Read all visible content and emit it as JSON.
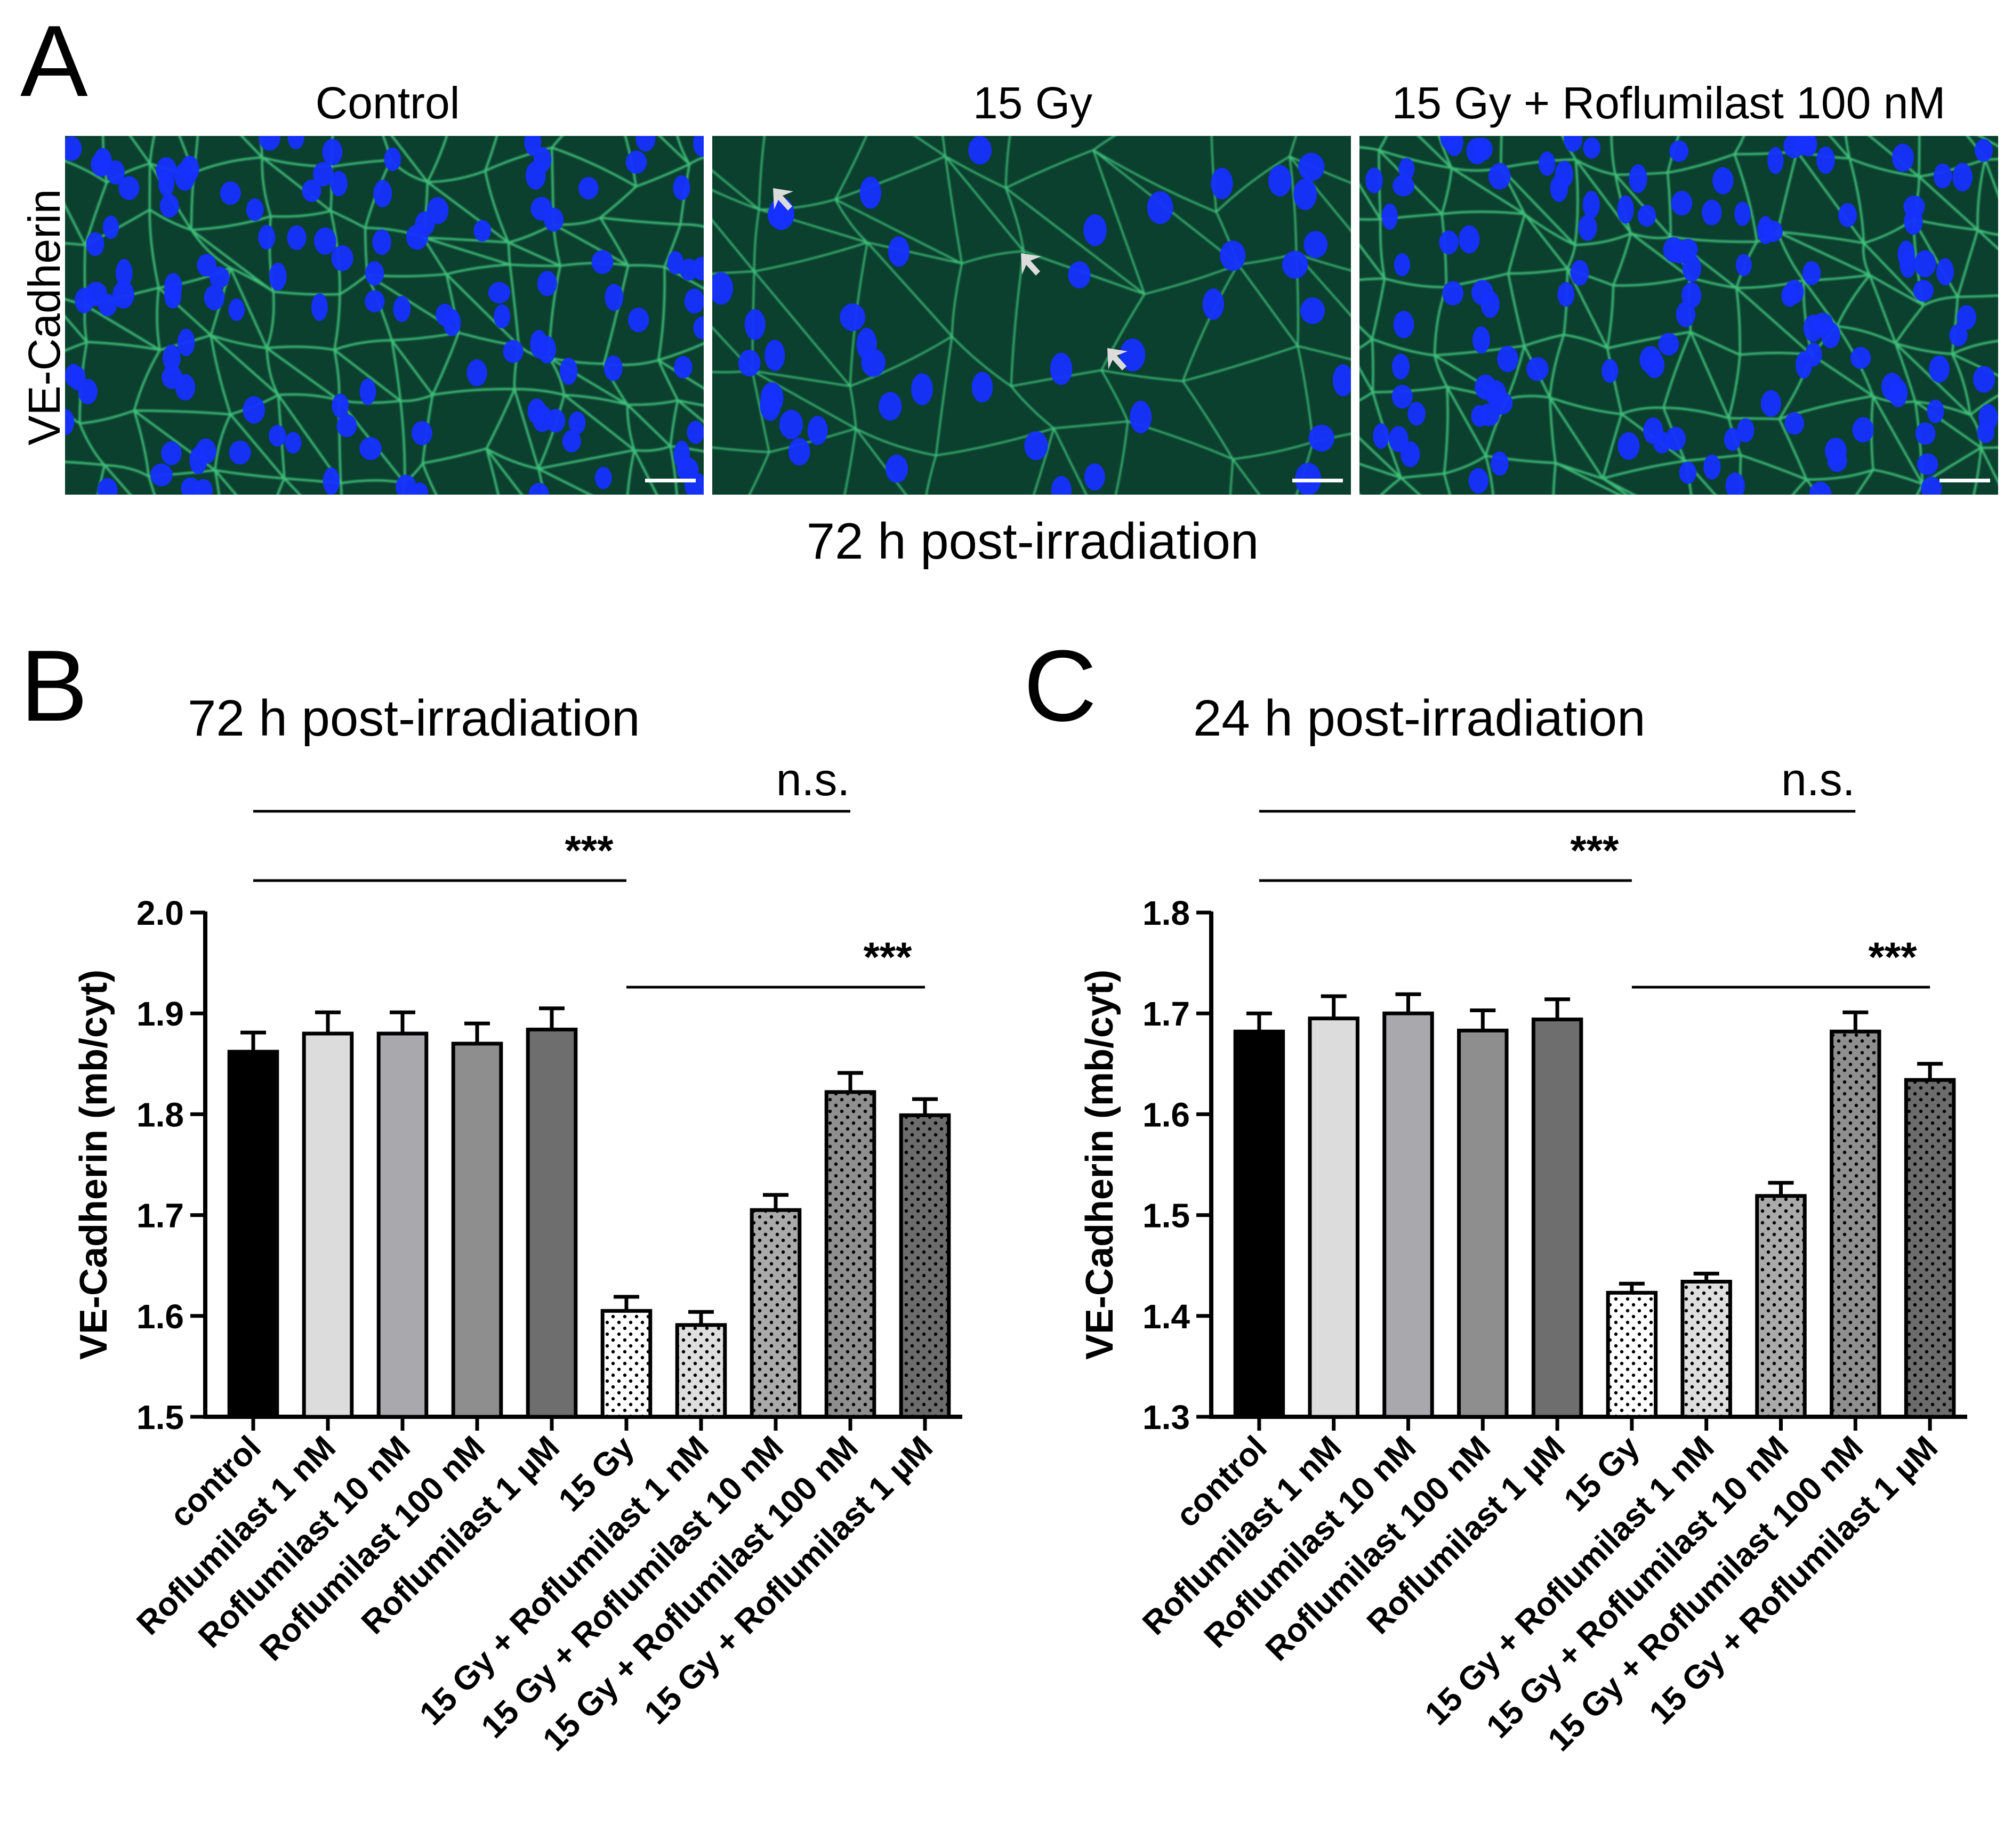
{
  "panel_a": {
    "letter": "A",
    "row_label": "VE-Cadherin",
    "titles": [
      "Control",
      "15 Gy",
      "15 Gy + Roflumilast 100 nM"
    ],
    "caption": "72 h post-irradiation",
    "arrows_panel": "15 Gy",
    "colors": {
      "background": "#0b3f2e",
      "membrane": "#3fc07a",
      "nucleus": "#1530ff",
      "arrow": "#dcdcdc"
    }
  },
  "chart_data": [
    {
      "panel": "B",
      "type": "bar",
      "title": "72 h post-irradiation",
      "xlabel": "",
      "ylabel": "VE-Cadherin (mb/cyt)",
      "ylim": [
        1.5,
        2.0
      ],
      "yticks": [
        1.5,
        1.6,
        1.7,
        1.8,
        1.9,
        2.0
      ],
      "ytick_labels": [
        "1.5",
        "1.6",
        "1.7",
        "1.8",
        "1.9",
        "2.0"
      ],
      "categories": [
        "control",
        "Roflumilast 1 nM",
        "Roflumilast 10 nM",
        "Roflumilast 100 nM",
        "Roflumilast 1 µM",
        "15 Gy",
        "15 Gy + Roflumilast 1 nM",
        "15 Gy + Roflumilast 10 nM",
        "15 Gy + Roflumilast 100 nM",
        "15 Gy + Roflumilast 1 µM"
      ],
      "values": [
        1.862,
        1.88,
        1.88,
        1.87,
        1.884,
        1.605,
        1.591,
        1.705,
        1.822,
        1.799
      ],
      "errors": [
        0.019,
        0.021,
        0.021,
        0.02,
        0.021,
        0.014,
        0.013,
        0.015,
        0.019,
        0.016
      ],
      "colors": [
        "#000000",
        "#dcdcdc",
        "#a9a9ad",
        "#8e8e8e",
        "#6e6e6e",
        "#ffffff",
        "#dedede",
        "#aaaaaa",
        "#8f8f8f",
        "#6c6c6c"
      ],
      "dotted": [
        false,
        false,
        false,
        false,
        false,
        true,
        true,
        true,
        true,
        true
      ],
      "annotations": [
        {
          "label": "***",
          "from": 0,
          "to": 5,
          "level": 1
        },
        {
          "label": "n.s.",
          "from": 0,
          "to": 8,
          "level": 2
        },
        {
          "label": "***",
          "from": 5,
          "to": 9,
          "level": 0
        }
      ]
    },
    {
      "panel": "C",
      "type": "bar",
      "title": "24 h post-irradiation",
      "xlabel": "",
      "ylabel": "VE-Cadherin (mb/cyt)",
      "ylim": [
        1.3,
        1.8
      ],
      "yticks": [
        1.3,
        1.4,
        1.5,
        1.6,
        1.7,
        1.8
      ],
      "ytick_labels": [
        "1.3",
        "1.4",
        "1.5",
        "1.6",
        "1.7",
        "1.8"
      ],
      "categories": [
        "control",
        "Roflumilast 1 nM",
        "Roflumilast 10 nM",
        "Roflumilast 100 nM",
        "Roflumilast 1 µM",
        "15 Gy",
        "15 Gy + Roflumilast 1 nM",
        "15 Gy + Roflumilast 10 nM",
        "15 Gy + Roflumilast 100 nM",
        "15 Gy + Roflumilast 1 µM"
      ],
      "values": [
        1.682,
        1.695,
        1.7,
        1.683,
        1.694,
        1.423,
        1.434,
        1.519,
        1.682,
        1.634
      ],
      "errors": [
        0.018,
        0.022,
        0.019,
        0.02,
        0.02,
        0.009,
        0.008,
        0.013,
        0.019,
        0.016
      ],
      "colors": [
        "#000000",
        "#dcdcdc",
        "#a9a9ad",
        "#8e8e8e",
        "#6e6e6e",
        "#ffffff",
        "#dedede",
        "#aaaaaa",
        "#8f8f8f",
        "#6c6c6c"
      ],
      "dotted": [
        false,
        false,
        false,
        false,
        false,
        true,
        true,
        true,
        true,
        true
      ],
      "annotations": [
        {
          "label": "***",
          "from": 0,
          "to": 5,
          "level": 1
        },
        {
          "label": "n.s.",
          "from": 0,
          "to": 8,
          "level": 2
        },
        {
          "label": "***",
          "from": 5,
          "to": 9,
          "level": 0
        }
      ]
    }
  ]
}
